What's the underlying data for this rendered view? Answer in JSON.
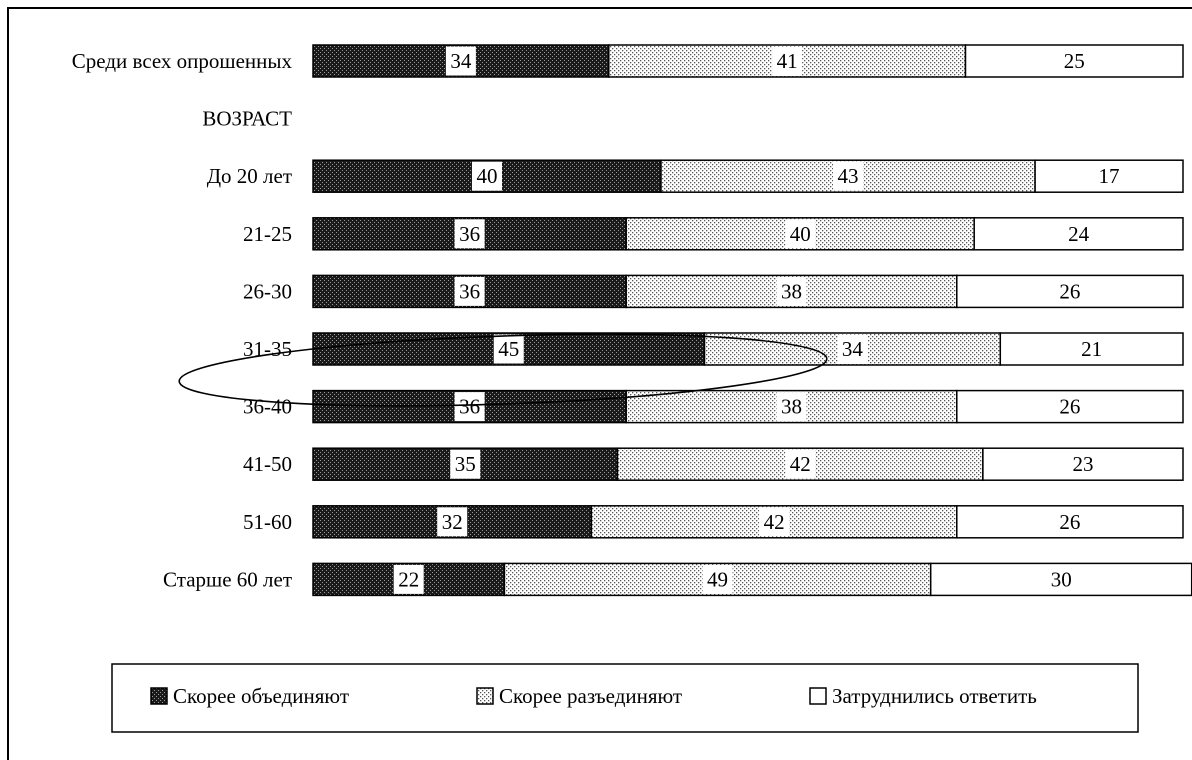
{
  "chart_data": {
    "type": "bar",
    "orientation": "horizontal",
    "stacked": true,
    "xlim": [
      0,
      100
    ],
    "grid": false,
    "legend_position": "bottom",
    "title": "",
    "xlabel": "",
    "ylabel": "",
    "categories": [
      "Среди всех опрошенных",
      "ВОЗРАСТ",
      "До 20 лет",
      "21-25",
      "26-30",
      "31-35",
      "36-40",
      "41-50",
      "51-60",
      "Старше 60 лет"
    ],
    "series": [
      {
        "name": "Скорее объединяют",
        "pattern": "dark-dots",
        "color": "#333333",
        "values": [
          34,
          null,
          40,
          36,
          36,
          45,
          36,
          35,
          32,
          22
        ]
      },
      {
        "name": "Скорее разъединяют",
        "pattern": "light-dots",
        "color": "#c8c8c8",
        "values": [
          41,
          null,
          43,
          40,
          38,
          34,
          38,
          42,
          42,
          49
        ]
      },
      {
        "name": "Затруднились ответить",
        "pattern": "none",
        "color": "#ffffff",
        "values": [
          25,
          null,
          17,
          24,
          26,
          21,
          26,
          23,
          26,
          30
        ]
      }
    ],
    "annotations": [
      {
        "type": "ellipse",
        "encloses_categories": [
          "31-35",
          "36-40"
        ]
      }
    ]
  }
}
